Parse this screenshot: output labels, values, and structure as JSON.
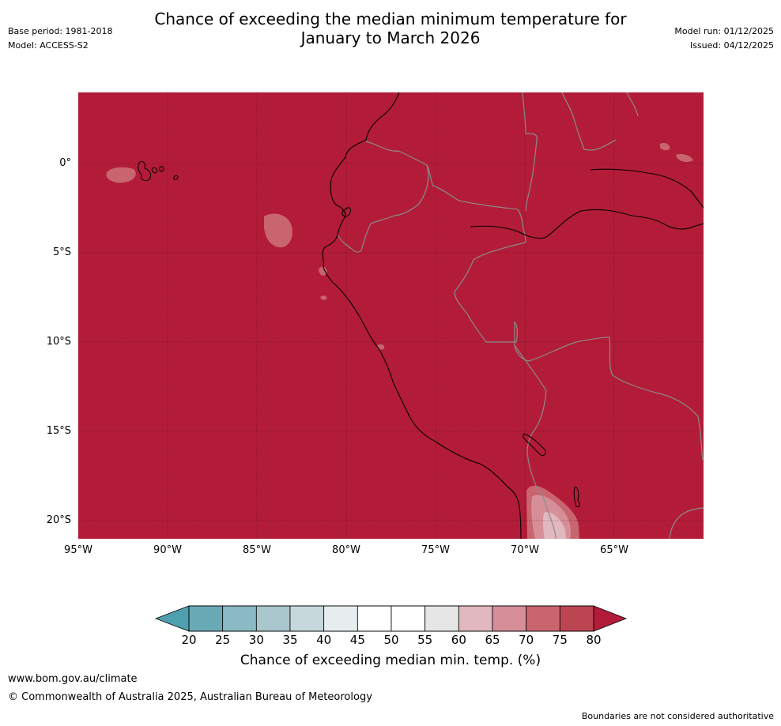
{
  "header": {
    "title_line1": "Chance of exceeding the median minimum temperature for",
    "title_line2": "January to March 2026",
    "base_period": "Base period: 1981-2018",
    "model": "Model: ACCESS-S2",
    "model_run": "Model run: 01/12/2025",
    "issued": "Issued: 04/12/2025"
  },
  "map": {
    "lat_labels": [
      "0°",
      "5°S",
      "10°S",
      "15°S",
      "20°S"
    ],
    "lon_labels": [
      "95°W",
      "90°W",
      "85°W",
      "80°W",
      "75°W",
      "70°W",
      "65°W"
    ],
    "ocean_color": "#b31c38",
    "land_color": "#b31c38"
  },
  "colorbar": {
    "ticks": [
      "20",
      "25",
      "30",
      "35",
      "40",
      "45",
      "50",
      "55",
      "60",
      "65",
      "70",
      "75",
      "80"
    ],
    "colors": [
      "#6aaab6",
      "#8bb9c4",
      "#a9c7cd",
      "#c7d8dd",
      "#e8eef0",
      "#ffffff",
      "#ffffff",
      "#e6e6e6",
      "#e1b8bf",
      "#d68f99",
      "#c9656f",
      "#bc4552"
    ],
    "under_color": "#4fa0ae",
    "over_color": "#b31c38",
    "label": "Chance of exceeding median min. temp. (%)"
  },
  "footer": {
    "website": "www.bom.gov.au/climate",
    "copyright": "© Commonwealth of Australia 2025, Australian Bureau of Meteorology",
    "disclaimer": "Boundaries are not considered authoritative"
  }
}
